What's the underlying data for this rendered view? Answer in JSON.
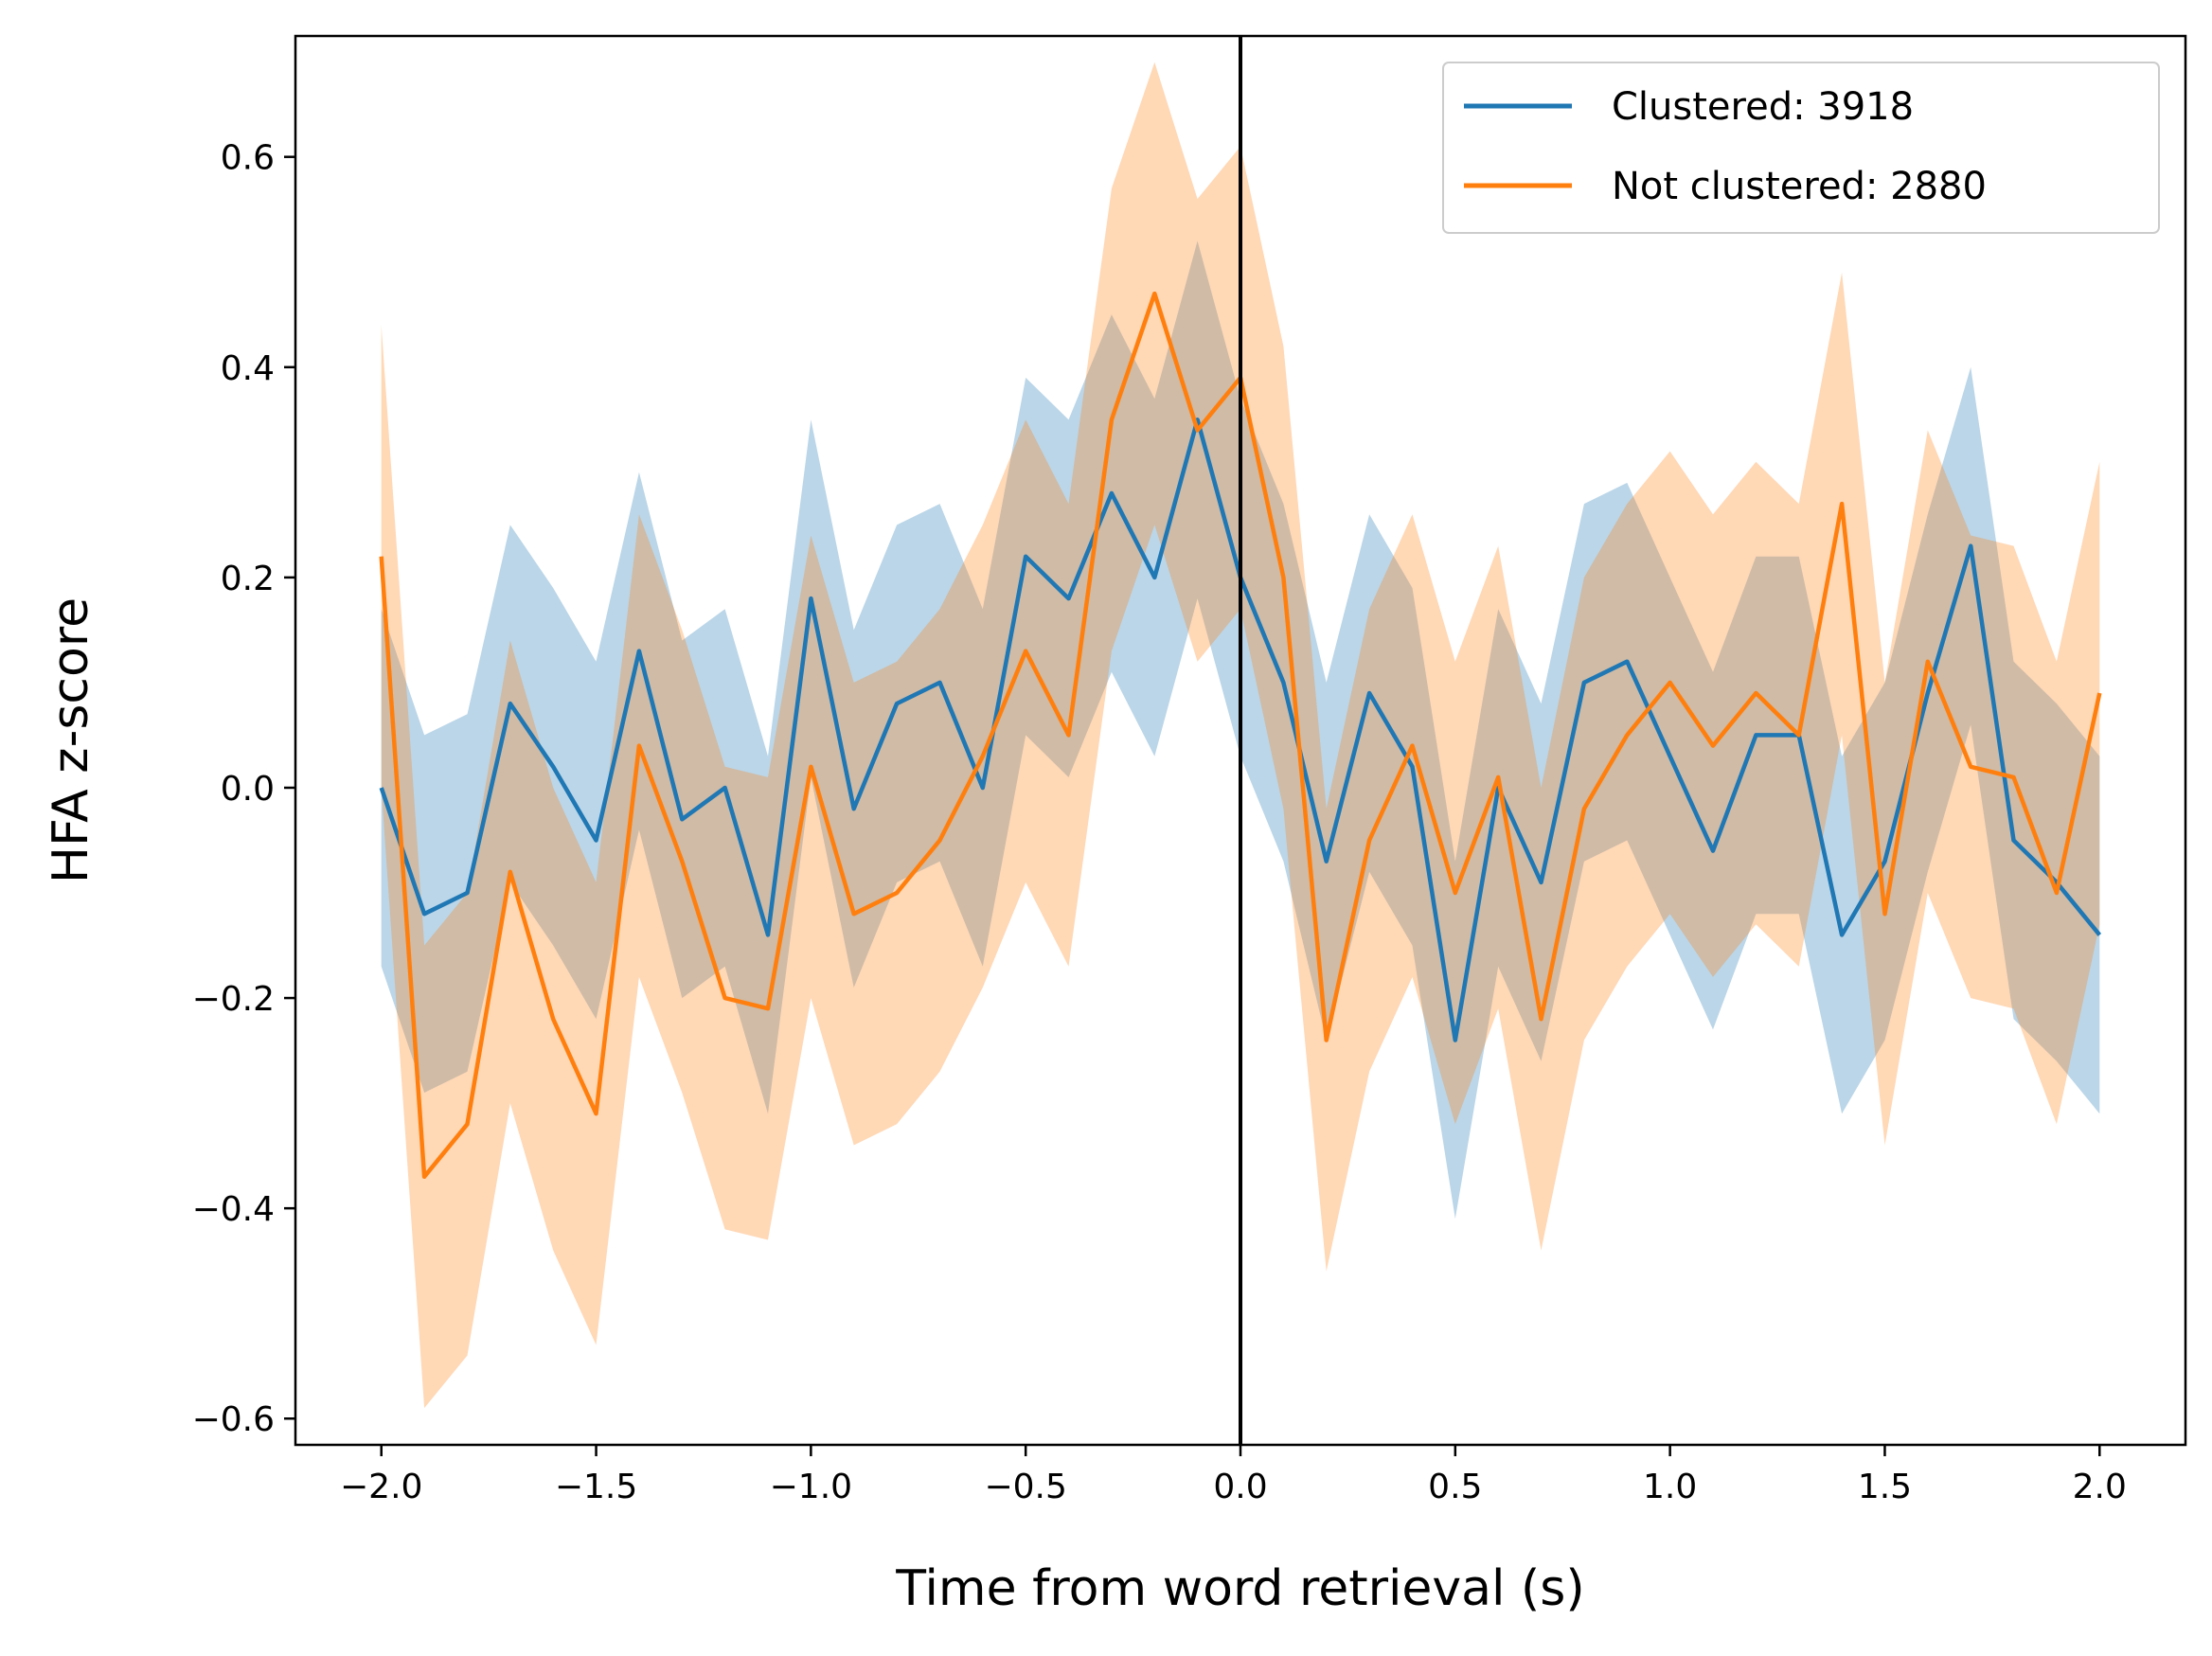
{
  "chart_data": {
    "type": "line",
    "xlabel": "Time from word retrieval (s)",
    "ylabel": "HFA z-score",
    "xlim": [
      -2.2,
      2.2
    ],
    "ylim": [
      -0.625,
      0.715
    ],
    "xticks": [
      -2.0,
      -1.5,
      -1.0,
      -0.5,
      0.0,
      0.5,
      1.0,
      1.5,
      2.0
    ],
    "xtick_labels": [
      "−2.0",
      "−1.5",
      "−1.0",
      "−0.5",
      "0.0",
      "0.5",
      "1.0",
      "1.5",
      "2.0"
    ],
    "yticks": [
      -0.6,
      -0.4,
      -0.2,
      0.0,
      0.2,
      0.4,
      0.6
    ],
    "ytick_labels": [
      "−0.6",
      "−0.4",
      "−0.2",
      "0.0",
      "0.2",
      "0.4",
      "0.6"
    ],
    "grid": false,
    "legend_position": "top-right",
    "vertical_line_x": 0.0,
    "band": "shaded band around each series (approx. ±0.17 for Clustered, ±0.22 for Not clustered)",
    "x": [
      -2.0,
      -1.9,
      -1.8,
      -1.7,
      -1.6,
      -1.5,
      -1.4,
      -1.3,
      -1.2,
      -1.1,
      -1.0,
      -0.9,
      -0.8,
      -0.7,
      -0.6,
      -0.5,
      -0.4,
      -0.3,
      -0.2,
      -0.1,
      0.0,
      0.1,
      0.2,
      0.3,
      0.4,
      0.5,
      0.6,
      0.7,
      0.8,
      0.9,
      1.0,
      1.1,
      1.2,
      1.3,
      1.4,
      1.5,
      1.6,
      1.7,
      1.8,
      1.9,
      2.0
    ],
    "series": [
      {
        "name": "Clustered: 3918",
        "color": "#1f77b4",
        "values": [
          0.0,
          -0.12,
          -0.1,
          0.08,
          0.02,
          -0.05,
          0.13,
          -0.03,
          0.0,
          -0.14,
          0.18,
          -0.02,
          0.08,
          0.1,
          0.0,
          0.22,
          0.18,
          0.28,
          0.2,
          0.35,
          0.2,
          0.1,
          -0.07,
          0.09,
          0.02,
          -0.24,
          0.0,
          -0.09,
          0.1,
          0.12,
          0.03,
          -0.06,
          0.05,
          0.05,
          -0.14,
          -0.07,
          0.09,
          0.23,
          -0.05,
          -0.09,
          -0.14
        ],
        "band": [
          0.17,
          0.17,
          0.17,
          0.17,
          0.17,
          0.17,
          0.17,
          0.17,
          0.17,
          0.17,
          0.17,
          0.17,
          0.17,
          0.17,
          0.17,
          0.17,
          0.17,
          0.17,
          0.17,
          0.17,
          0.17,
          0.17,
          0.17,
          0.17,
          0.17,
          0.17,
          0.17,
          0.17,
          0.17,
          0.17,
          0.17,
          0.17,
          0.17,
          0.17,
          0.17,
          0.17,
          0.17,
          0.17,
          0.17,
          0.17,
          0.17
        ]
      },
      {
        "name": "Not clustered: 2880",
        "color": "#ff7f0e",
        "values": [
          0.22,
          -0.37,
          -0.32,
          -0.08,
          -0.22,
          -0.31,
          0.04,
          -0.07,
          -0.2,
          -0.21,
          0.02,
          -0.12,
          -0.1,
          -0.05,
          0.03,
          0.13,
          0.05,
          0.35,
          0.47,
          0.34,
          0.39,
          0.2,
          -0.24,
          -0.05,
          0.04,
          -0.1,
          0.01,
          -0.22,
          -0.02,
          0.05,
          0.1,
          0.04,
          0.09,
          0.05,
          0.27,
          -0.12,
          0.12,
          0.02,
          0.01,
          -0.1,
          0.09
        ],
        "band": [
          0.22,
          0.22,
          0.22,
          0.22,
          0.22,
          0.22,
          0.22,
          0.22,
          0.22,
          0.22,
          0.22,
          0.22,
          0.22,
          0.22,
          0.22,
          0.22,
          0.22,
          0.22,
          0.22,
          0.22,
          0.22,
          0.22,
          0.22,
          0.22,
          0.22,
          0.22,
          0.22,
          0.22,
          0.22,
          0.22,
          0.22,
          0.22,
          0.22,
          0.22,
          0.22,
          0.22,
          0.22,
          0.22,
          0.22,
          0.22,
          0.22
        ]
      }
    ]
  }
}
